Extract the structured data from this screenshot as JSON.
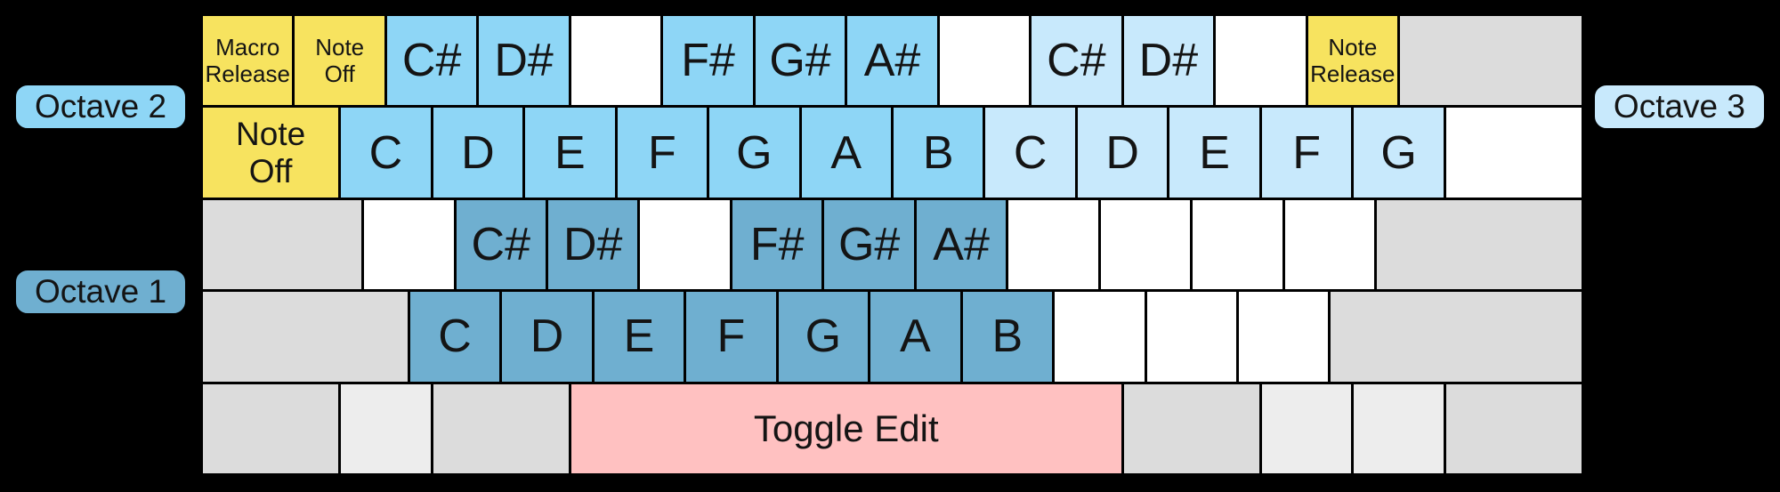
{
  "diagram": {
    "description": "Computer keyboard note-mapping diagram with three octave zones and function keys",
    "background": "#000000"
  },
  "colors": {
    "function_yellow": "#F7E35F",
    "octave1_blue": "#6FAFD0",
    "octave2_blue": "#8ED6F6",
    "octave3_blue": "#C8E9FC",
    "toggle_pink": "#FFC1C1",
    "inactive_gray": "#DCDCDC",
    "inactive_lightgray": "#EDEDED",
    "unmapped_white": "#FFFFFF",
    "key_border": "#000000",
    "text": "#141414"
  },
  "octave_labels": {
    "octave1": "Octave 1",
    "octave2": "Octave 2",
    "octave3": "Octave 3"
  },
  "keyboard": {
    "rows": [
      {
        "keys": [
          {
            "name": "key-macro-release",
            "label": "Macro\nRelease",
            "type": "function",
            "text": "small",
            "span": 4
          },
          {
            "name": "key-note-off-top",
            "label": "Note\nOff",
            "type": "function",
            "text": "small",
            "span": 4
          },
          {
            "name": "key-note-csharp-oct2",
            "label": "C#",
            "type": "oct2",
            "text": "note",
            "span": 4
          },
          {
            "name": "key-note-dsharp-oct2",
            "label": "D#",
            "type": "oct2",
            "text": "note",
            "span": 4
          },
          {
            "name": "key-blank",
            "label": "",
            "type": "blank",
            "span": 4
          },
          {
            "name": "key-note-fsharp-oct2",
            "label": "F#",
            "type": "oct2",
            "text": "note",
            "span": 4
          },
          {
            "name": "key-note-gsharp-oct2",
            "label": "G#",
            "type": "oct2",
            "text": "note",
            "span": 4
          },
          {
            "name": "key-note-asharp-oct2",
            "label": "A#",
            "type": "oct2",
            "text": "note",
            "span": 4
          },
          {
            "name": "key-blank",
            "label": "",
            "type": "blank",
            "span": 4
          },
          {
            "name": "key-note-csharp-oct3",
            "label": "C#",
            "type": "oct3",
            "text": "note",
            "span": 4
          },
          {
            "name": "key-note-dsharp-oct3",
            "label": "D#",
            "type": "oct3",
            "text": "note",
            "span": 4
          },
          {
            "name": "key-blank",
            "label": "",
            "type": "blank",
            "span": 4
          },
          {
            "name": "key-note-release",
            "label": "Note\nRelease",
            "type": "function",
            "text": "small",
            "span": 4
          },
          {
            "name": "key-inactive",
            "label": "",
            "type": "gray",
            "span": 8
          }
        ]
      },
      {
        "keys": [
          {
            "name": "key-note-off",
            "label": "Note\nOff",
            "type": "function",
            "text": "medium",
            "span": 6
          },
          {
            "name": "key-note-c-oct2",
            "label": "C",
            "type": "oct2",
            "text": "note",
            "span": 4
          },
          {
            "name": "key-note-d-oct2",
            "label": "D",
            "type": "oct2",
            "text": "note",
            "span": 4
          },
          {
            "name": "key-note-e-oct2",
            "label": "E",
            "type": "oct2",
            "text": "note",
            "span": 4
          },
          {
            "name": "key-note-f-oct2",
            "label": "F",
            "type": "oct2",
            "text": "note",
            "span": 4
          },
          {
            "name": "key-note-g-oct2",
            "label": "G",
            "type": "oct2",
            "text": "note",
            "span": 4
          },
          {
            "name": "key-note-a-oct2",
            "label": "A",
            "type": "oct2",
            "text": "note",
            "span": 4
          },
          {
            "name": "key-note-b-oct2",
            "label": "B",
            "type": "oct2",
            "text": "note",
            "span": 4
          },
          {
            "name": "key-note-c-oct3",
            "label": "C",
            "type": "oct3",
            "text": "note",
            "span": 4
          },
          {
            "name": "key-note-d-oct3",
            "label": "D",
            "type": "oct3",
            "text": "note",
            "span": 4
          },
          {
            "name": "key-note-e-oct3",
            "label": "E",
            "type": "oct3",
            "text": "note",
            "span": 4
          },
          {
            "name": "key-note-f-oct3",
            "label": "F",
            "type": "oct3",
            "text": "note",
            "span": 4
          },
          {
            "name": "key-note-g-oct3",
            "label": "G",
            "type": "oct3",
            "text": "note",
            "span": 4
          },
          {
            "name": "key-blank",
            "label": "",
            "type": "blank",
            "span": 6
          }
        ]
      },
      {
        "keys": [
          {
            "name": "key-inactive",
            "label": "",
            "type": "gray",
            "span": 7
          },
          {
            "name": "key-blank",
            "label": "",
            "type": "blank",
            "span": 4
          },
          {
            "name": "key-note-csharp-oct1",
            "label": "C#",
            "type": "oct1",
            "text": "note",
            "span": 4
          },
          {
            "name": "key-note-dsharp-oct1",
            "label": "D#",
            "type": "oct1",
            "text": "note",
            "span": 4
          },
          {
            "name": "key-blank",
            "label": "",
            "type": "blank",
            "span": 4
          },
          {
            "name": "key-note-fsharp-oct1",
            "label": "F#",
            "type": "oct1",
            "text": "note",
            "span": 4
          },
          {
            "name": "key-note-gsharp-oct1",
            "label": "G#",
            "type": "oct1",
            "text": "note",
            "span": 4
          },
          {
            "name": "key-note-asharp-oct1",
            "label": "A#",
            "type": "oct1",
            "text": "note",
            "span": 4
          },
          {
            "name": "key-blank",
            "label": "",
            "type": "blank",
            "span": 4
          },
          {
            "name": "key-blank",
            "label": "",
            "type": "blank",
            "span": 4
          },
          {
            "name": "key-blank",
            "label": "",
            "type": "blank",
            "span": 4
          },
          {
            "name": "key-blank",
            "label": "",
            "type": "blank",
            "span": 4
          },
          {
            "name": "key-inactive",
            "label": "",
            "type": "gray",
            "span": 9
          }
        ]
      },
      {
        "keys": [
          {
            "name": "key-inactive",
            "label": "",
            "type": "gray",
            "span": 9
          },
          {
            "name": "key-note-c-oct1",
            "label": "C",
            "type": "oct1",
            "text": "note",
            "span": 4
          },
          {
            "name": "key-note-d-oct1",
            "label": "D",
            "type": "oct1",
            "text": "note",
            "span": 4
          },
          {
            "name": "key-note-e-oct1",
            "label": "E",
            "type": "oct1",
            "text": "note",
            "span": 4
          },
          {
            "name": "key-note-f-oct1",
            "label": "F",
            "type": "oct1",
            "text": "note",
            "span": 4
          },
          {
            "name": "key-note-g-oct1",
            "label": "G",
            "type": "oct1",
            "text": "note",
            "span": 4
          },
          {
            "name": "key-note-a-oct1",
            "label": "A",
            "type": "oct1",
            "text": "note",
            "span": 4
          },
          {
            "name": "key-note-b-oct1",
            "label": "B",
            "type": "oct1",
            "text": "note",
            "span": 4
          },
          {
            "name": "key-blank",
            "label": "",
            "type": "blank",
            "span": 4
          },
          {
            "name": "key-blank",
            "label": "",
            "type": "blank",
            "span": 4
          },
          {
            "name": "key-blank",
            "label": "",
            "type": "blank",
            "span": 4
          },
          {
            "name": "key-inactive",
            "label": "",
            "type": "gray",
            "span": 11
          }
        ]
      },
      {
        "keys": [
          {
            "name": "key-inactive",
            "label": "",
            "type": "gray",
            "span": 6
          },
          {
            "name": "key-inactive",
            "label": "",
            "type": "lightgray",
            "span": 4
          },
          {
            "name": "key-inactive",
            "label": "",
            "type": "gray",
            "span": 6
          },
          {
            "name": "key-toggle-edit",
            "label": "Toggle Edit",
            "type": "toggle",
            "text": "toggle",
            "span": 24
          },
          {
            "name": "key-inactive",
            "label": "",
            "type": "gray",
            "span": 6
          },
          {
            "name": "key-inactive",
            "label": "",
            "type": "lightgray",
            "span": 4
          },
          {
            "name": "key-inactive",
            "label": "",
            "type": "lightgray",
            "span": 4
          },
          {
            "name": "key-inactive",
            "label": "",
            "type": "gray",
            "span": 6
          }
        ]
      }
    ]
  }
}
